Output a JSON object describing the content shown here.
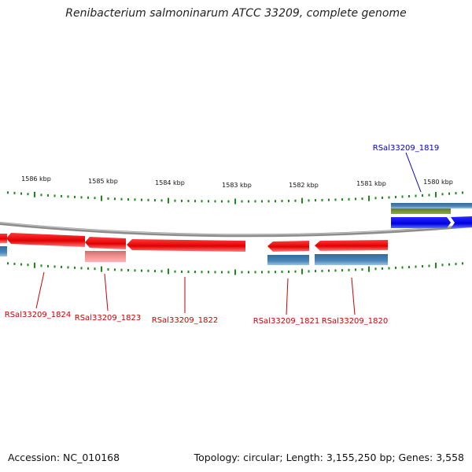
{
  "title": "Renibacterium salmoninarum ATCC 33209, complete genome",
  "footer": {
    "accession": "Accession: NC_010168",
    "summary": "Topology: circular; Length: 3,155,250 bp; Genes: 3,558"
  },
  "colors": {
    "forward_cds": "#0000ee",
    "reverse_cds": "#ee0000",
    "forward_label": "#0000cc",
    "reverse_label": "#cc0000",
    "gene_track": "#3f7fb0",
    "annotation_track": "#6f8c30",
    "tick": "#1a8a1a",
    "backbone": "#8c8c8c"
  },
  "scale_ticks": [
    "1586 kbp",
    "1585 kbp",
    "1584 kbp",
    "1583 kbp",
    "1582 kbp",
    "1581 kbp",
    "1580 kbp"
  ],
  "genes": [
    {
      "name": "RSal33209_1819",
      "strand": "forward"
    },
    {
      "name": "RSal33209_1820",
      "strand": "reverse"
    },
    {
      "name": "RSal33209_1821",
      "strand": "reverse"
    },
    {
      "name": "RSal33209_1822",
      "strand": "reverse"
    },
    {
      "name": "RSal33209_1823",
      "strand": "reverse"
    },
    {
      "name": "RSal33209_1824",
      "strand": "reverse"
    }
  ]
}
